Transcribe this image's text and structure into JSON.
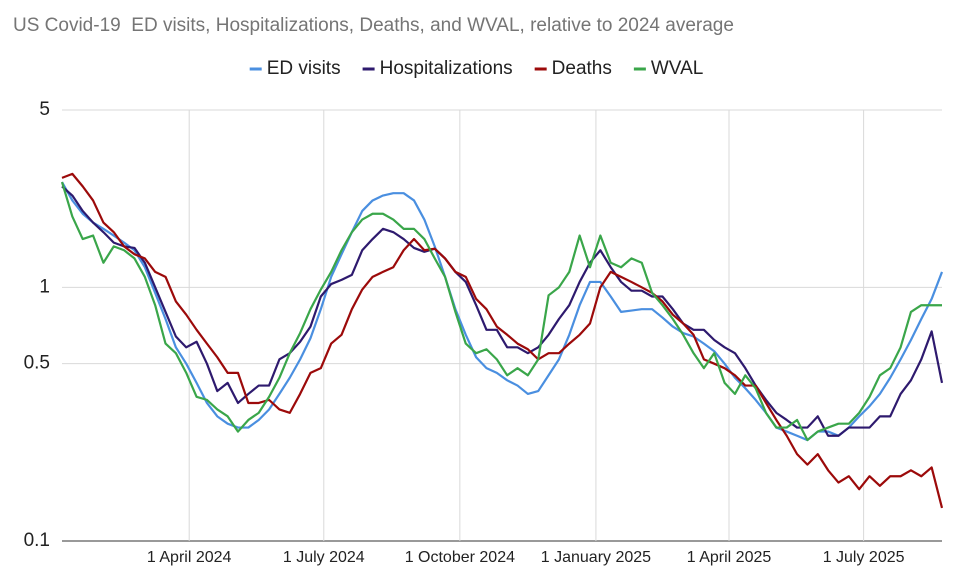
{
  "chart_data": {
    "type": "line",
    "title": "US Covid-19  ED visits, Hospitalizations, Deaths, and WVAL, relative to 2024 average",
    "x": [
      "2024-01-06",
      "2024-01-13",
      "2024-01-20",
      "2024-01-27",
      "2024-02-03",
      "2024-02-10",
      "2024-02-17",
      "2024-02-24",
      "2024-03-02",
      "2024-03-09",
      "2024-03-16",
      "2024-03-23",
      "2024-03-30",
      "2024-04-06",
      "2024-04-13",
      "2024-04-20",
      "2024-04-27",
      "2024-05-04",
      "2024-05-11",
      "2024-05-18",
      "2024-05-25",
      "2024-06-01",
      "2024-06-08",
      "2024-06-15",
      "2024-06-22",
      "2024-06-29",
      "2024-07-06",
      "2024-07-13",
      "2024-07-20",
      "2024-07-27",
      "2024-08-03",
      "2024-08-10",
      "2024-08-17",
      "2024-08-24",
      "2024-08-31",
      "2024-09-07",
      "2024-09-14",
      "2024-09-21",
      "2024-09-28",
      "2024-10-05",
      "2024-10-12",
      "2024-10-19",
      "2024-10-26",
      "2024-11-02",
      "2024-11-09",
      "2024-11-16",
      "2024-11-23",
      "2024-11-30",
      "2024-12-07",
      "2024-12-14",
      "2024-12-21",
      "2024-12-28",
      "2025-01-04",
      "2025-01-11",
      "2025-01-18",
      "2025-01-25",
      "2025-02-01",
      "2025-02-08",
      "2025-02-15",
      "2025-02-22",
      "2025-03-01",
      "2025-03-08",
      "2025-03-15",
      "2025-03-22",
      "2025-03-29",
      "2025-04-05",
      "2025-04-12",
      "2025-04-19",
      "2025-04-26",
      "2025-05-03",
      "2025-05-10",
      "2025-05-17",
      "2025-05-24",
      "2025-05-31",
      "2025-06-07",
      "2025-06-14",
      "2025-06-21",
      "2025-06-28",
      "2025-07-05",
      "2025-07-12",
      "2025-07-19",
      "2025-07-26",
      "2025-08-02",
      "2025-08-09",
      "2025-08-16",
      "2025-08-23"
    ],
    "series": [
      {
        "name": "ED visits",
        "color": "#4a8fe0",
        "values": [
          2.6,
          2.2,
          1.95,
          1.8,
          1.7,
          1.6,
          1.5,
          1.4,
          1.2,
          0.95,
          0.75,
          0.58,
          0.5,
          0.42,
          0.35,
          0.31,
          0.29,
          0.28,
          0.28,
          0.3,
          0.33,
          0.38,
          0.44,
          0.52,
          0.63,
          0.82,
          1.1,
          1.35,
          1.65,
          2.0,
          2.2,
          2.3,
          2.35,
          2.35,
          2.2,
          1.85,
          1.45,
          1.1,
          0.82,
          0.65,
          0.53,
          0.48,
          0.46,
          0.43,
          0.41,
          0.38,
          0.39,
          0.45,
          0.52,
          0.65,
          0.85,
          1.05,
          1.05,
          0.92,
          0.8,
          0.81,
          0.82,
          0.82,
          0.76,
          0.7,
          0.66,
          0.64,
          0.6,
          0.56,
          0.5,
          0.44,
          0.4,
          0.36,
          0.32,
          0.28,
          0.27,
          0.26,
          0.25,
          0.27,
          0.27,
          0.26,
          0.28,
          0.31,
          0.34,
          0.38,
          0.44,
          0.52,
          0.62,
          0.75,
          0.9,
          1.15
        ]
      },
      {
        "name": "Hospitalizations",
        "color": "#2e1a6e",
        "values": [
          2.5,
          2.3,
          2.0,
          1.8,
          1.65,
          1.5,
          1.45,
          1.43,
          1.25,
          1.0,
          0.8,
          0.64,
          0.58,
          0.61,
          0.5,
          0.39,
          0.42,
          0.35,
          0.38,
          0.41,
          0.41,
          0.52,
          0.55,
          0.61,
          0.7,
          0.92,
          1.03,
          1.07,
          1.12,
          1.4,
          1.55,
          1.7,
          1.65,
          1.55,
          1.43,
          1.38,
          1.42,
          1.3,
          1.15,
          1.05,
          0.85,
          0.68,
          0.68,
          0.58,
          0.58,
          0.55,
          0.58,
          0.65,
          0.75,
          0.85,
          1.05,
          1.25,
          1.4,
          1.2,
          1.05,
          0.97,
          0.97,
          0.92,
          0.92,
          0.82,
          0.72,
          0.68,
          0.68,
          0.62,
          0.58,
          0.55,
          0.48,
          0.41,
          0.36,
          0.32,
          0.3,
          0.28,
          0.28,
          0.31,
          0.26,
          0.26,
          0.28,
          0.28,
          0.28,
          0.31,
          0.31,
          0.38,
          0.43,
          0.52,
          0.67,
          0.42
        ]
      },
      {
        "name": "Deaths",
        "color": "#9c0a0a",
        "values": [
          2.7,
          2.8,
          2.5,
          2.2,
          1.8,
          1.65,
          1.45,
          1.35,
          1.3,
          1.15,
          1.1,
          0.88,
          0.78,
          0.68,
          0.6,
          0.53,
          0.46,
          0.46,
          0.35,
          0.35,
          0.36,
          0.33,
          0.32,
          0.38,
          0.46,
          0.48,
          0.6,
          0.65,
          0.82,
          0.98,
          1.1,
          1.15,
          1.2,
          1.4,
          1.55,
          1.4,
          1.42,
          1.3,
          1.15,
          1.1,
          0.9,
          0.82,
          0.7,
          0.65,
          0.6,
          0.57,
          0.52,
          0.55,
          0.55,
          0.6,
          0.65,
          0.72,
          1.0,
          1.15,
          1.1,
          1.05,
          1.0,
          0.95,
          0.88,
          0.78,
          0.72,
          0.65,
          0.52,
          0.5,
          0.48,
          0.45,
          0.41,
          0.41,
          0.35,
          0.3,
          0.26,
          0.22,
          0.2,
          0.22,
          0.19,
          0.17,
          0.18,
          0.16,
          0.18,
          0.165,
          0.18,
          0.18,
          0.19,
          0.18,
          0.195,
          0.135
        ]
      },
      {
        "name": "WVAL",
        "color": "#3aa64a",
        "values": [
          2.6,
          1.9,
          1.55,
          1.6,
          1.25,
          1.45,
          1.4,
          1.3,
          1.1,
          0.85,
          0.6,
          0.55,
          0.46,
          0.37,
          0.36,
          0.33,
          0.31,
          0.27,
          0.3,
          0.32,
          0.37,
          0.44,
          0.55,
          0.66,
          0.82,
          0.98,
          1.15,
          1.4,
          1.65,
          1.85,
          1.95,
          1.95,
          1.85,
          1.7,
          1.7,
          1.55,
          1.3,
          1.1,
          0.8,
          0.6,
          0.55,
          0.57,
          0.52,
          0.45,
          0.48,
          0.45,
          0.52,
          0.93,
          1.0,
          1.15,
          1.6,
          1.2,
          1.6,
          1.25,
          1.2,
          1.3,
          1.25,
          0.95,
          0.85,
          0.75,
          0.65,
          0.55,
          0.48,
          0.55,
          0.42,
          0.38,
          0.45,
          0.4,
          0.32,
          0.28,
          0.28,
          0.3,
          0.25,
          0.27,
          0.28,
          0.29,
          0.29,
          0.32,
          0.37,
          0.45,
          0.48,
          0.58,
          0.8,
          0.85,
          0.85,
          0.85
        ]
      }
    ],
    "xlim": [
      "2024-01-06",
      "2025-08-23"
    ],
    "xticks": [
      {
        "value": "2024-04-01",
        "label": "1 April 2024"
      },
      {
        "value": "2024-07-01",
        "label": "1 July 2024"
      },
      {
        "value": "2024-10-01",
        "label": "1 October 2024"
      },
      {
        "value": "2025-01-01",
        "label": "1 January 2025"
      },
      {
        "value": "2025-04-01",
        "label": "1 April 2025"
      },
      {
        "value": "2025-07-01",
        "label": "1 July 2025"
      }
    ],
    "ylim": [
      0.1,
      5
    ],
    "yticks": [
      0.1,
      0.5,
      1,
      5
    ],
    "log_y": true,
    "grid": true,
    "legend": "top"
  }
}
